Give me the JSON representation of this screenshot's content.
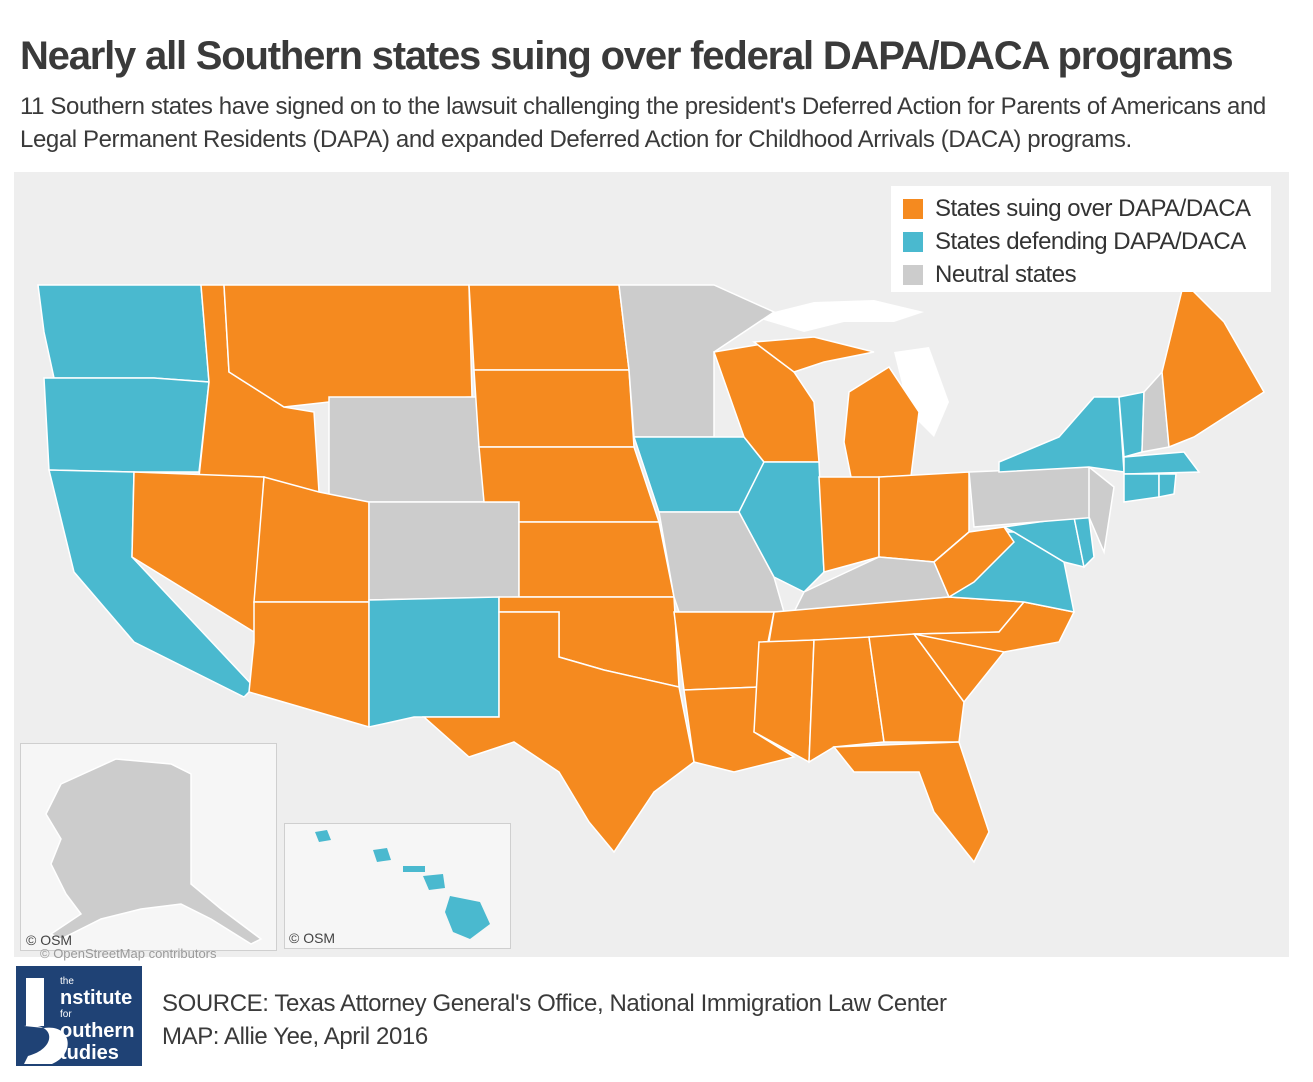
{
  "header": {
    "title": "Nearly all Southern states suing over federal DAPA/DACA programs",
    "subtitle": "11 Southern states have signed on to the lawsuit challenging the president's Deferred Action for Parents of Americans and Legal Permanent Residents (DAPA) and expanded Deferred Action for Childhood Arrivals (DACA) programs."
  },
  "legend": {
    "items": [
      {
        "label": "States suing over DAPA/DACA",
        "color": "#f58a1f"
      },
      {
        "label": "States defending DAPA/DACA",
        "color": "#4ab9cf"
      },
      {
        "label": "Neutral states",
        "color": "#cccccc"
      }
    ]
  },
  "colors": {
    "suing": "#f58a1f",
    "defending": "#4ab9cf",
    "neutral": "#cccccc",
    "background": "#eeeeee",
    "logo": "#1f4275"
  },
  "map": {
    "credit_alaska": "© OSM",
    "credit_hawaii": "© OSM",
    "credit_faded": "© OpenStreetMap contributors",
    "states": {
      "suing": [
        "ID",
        "MT",
        "ND",
        "SD",
        "NE",
        "KS",
        "OK",
        "TX",
        "NV",
        "UT",
        "AZ",
        "AR",
        "LA",
        "MS",
        "AL",
        "GA",
        "FL",
        "SC",
        "NC",
        "TN",
        "WI",
        "MI",
        "IN",
        "OH",
        "WV",
        "ME"
      ],
      "defending": [
        "WA",
        "OR",
        "CA",
        "NM",
        "IA",
        "IL",
        "NY",
        "VT",
        "MA",
        "CT",
        "RI",
        "DE",
        "MD",
        "VA",
        "HI"
      ],
      "neutral": [
        "WY",
        "CO",
        "MN",
        "MO",
        "KY",
        "PA",
        "NJ",
        "NH",
        "AK"
      ]
    }
  },
  "footer": {
    "logo": {
      "line_the": "the",
      "line1": "nstitute",
      "line_for": "for",
      "line2": "outhern",
      "line3": "tudies"
    },
    "source": "SOURCE: Texas Attorney General's Office, National Immigration Law Center",
    "map_credit": "MAP: Allie Yee, April 2016"
  }
}
